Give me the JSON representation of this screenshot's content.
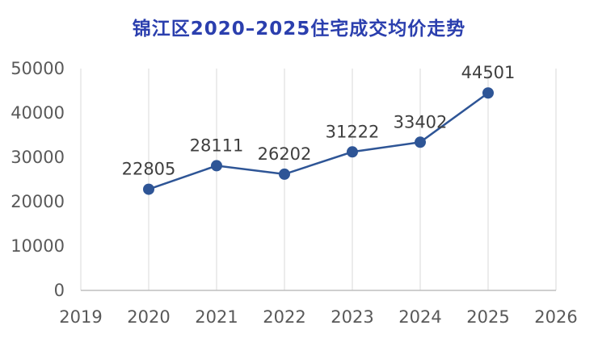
{
  "chart_data": {
    "type": "line",
    "title": "锦江区2020–2025住宅成交均价走势",
    "x": [
      2020,
      2021,
      2022,
      2023,
      2024,
      2025
    ],
    "values": [
      22805,
      28111,
      26202,
      31222,
      33402,
      44501
    ],
    "xlabel": "",
    "ylabel": "",
    "xlim": [
      2019,
      2026
    ],
    "ylim": [
      0,
      50000
    ],
    "x_ticks": [
      2019,
      2020,
      2021,
      2022,
      2023,
      2024,
      2025,
      2026
    ],
    "y_ticks": [
      0,
      10000,
      20000,
      30000,
      40000,
      50000
    ],
    "grid": "vertical-only",
    "legend": "none",
    "line_color": "#2e5596",
    "marker_color": "#2e5596",
    "title_color": "#2b3fae",
    "tick_color": "#595959",
    "label_color": "#3f3f3f",
    "grid_color": "#d9d9d9",
    "axis_color": "#bfbfbf",
    "background_color": "#ffffff"
  }
}
